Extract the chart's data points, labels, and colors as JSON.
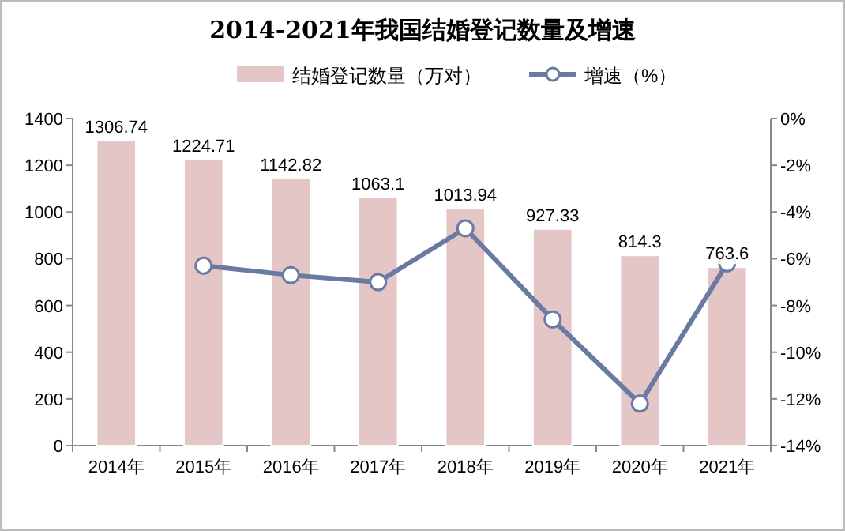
{
  "chart_data": {
    "type": "bar",
    "title": "2014-2021年我国结婚登记数量及增速",
    "categories": [
      "2014年",
      "2015年",
      "2016年",
      "2017年",
      "2018年",
      "2019年",
      "2020年",
      "2021年"
    ],
    "series": [
      {
        "name": "结婚登记数量（万对）",
        "color": "#e5c6c6",
        "values": [
          1306.74,
          1224.71,
          1142.82,
          1063.1,
          1013.94,
          927.33,
          814.3,
          763.6
        ],
        "value_labels": [
          "1306.74",
          "1224.71",
          "1142.82",
          "1063.1",
          "1013.94",
          "927.33",
          "814.3",
          "763.6"
        ]
      },
      {
        "name": "增速（%）",
        "type": "line",
        "axis": "y2",
        "color": "#6a7aa3",
        "marker": "circle",
        "values": [
          null,
          -6.3,
          -6.7,
          -7.0,
          -4.7,
          -8.6,
          -12.2,
          -6.2
        ]
      }
    ],
    "ylim": [
      0,
      1400
    ],
    "yticks": [
      0,
      200,
      400,
      600,
      800,
      1000,
      1200,
      1400
    ],
    "y2lim": [
      -14,
      0
    ],
    "y2ticks": [
      {
        "value": 0,
        "label": "0%"
      },
      {
        "value": -2,
        "label": "-2%"
      },
      {
        "value": -4,
        "label": "-4%"
      },
      {
        "value": -6,
        "label": "-6%"
      },
      {
        "value": -8,
        "label": "-8%"
      },
      {
        "value": -10,
        "label": "-10%"
      },
      {
        "value": -12,
        "label": "-12%"
      },
      {
        "value": -14,
        "label": "-14%"
      }
    ],
    "grid": false,
    "legend": "top"
  }
}
